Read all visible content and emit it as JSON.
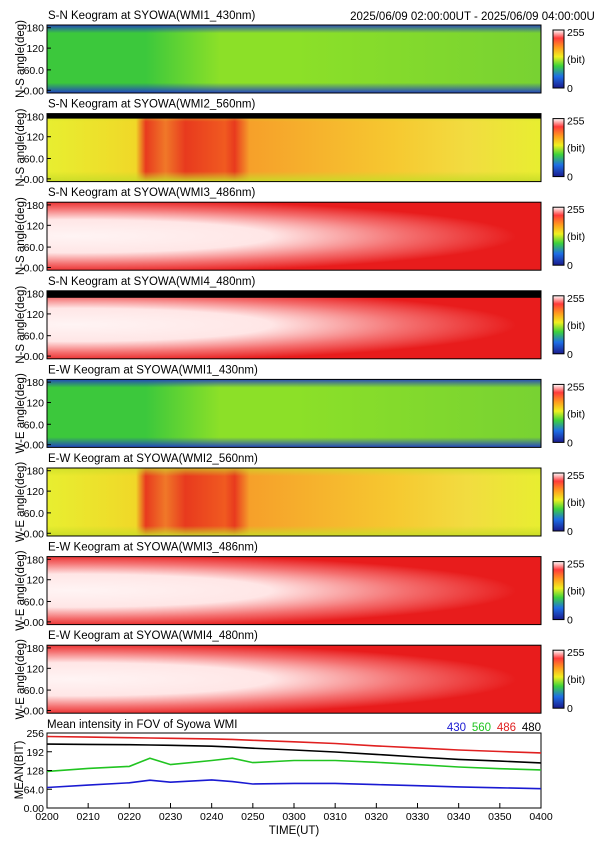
{
  "header": {
    "period": "2025/06/09 02:00:00UT - 2025/06/09 04:00:00UT"
  },
  "colorbar": {
    "max_label": "255",
    "min_label": "0",
    "unit_label": "(bit)"
  },
  "keograms": [
    {
      "title": "S-N Keogram at SYOWA(WMI1_430nm)",
      "ylabel": "N-S angle(deg)",
      "yticks": [
        "180",
        "120",
        "60.0",
        "0.00"
      ]
    },
    {
      "title": "S-N Keogram at SYOWA(WMI2_560nm)",
      "ylabel": "N-S angle(deg)",
      "yticks": [
        "180",
        "120",
        "60.0",
        "0.00"
      ]
    },
    {
      "title": "S-N Keogram at SYOWA(WMI3_486nm)",
      "ylabel": "N-S angle(deg)",
      "yticks": [
        "180",
        "120",
        "60.0",
        "0.00"
      ]
    },
    {
      "title": "S-N Keogram at SYOWA(WMI4_480nm)",
      "ylabel": "N-S angle(deg)",
      "yticks": [
        "180",
        "120",
        "60.0",
        "0.00"
      ]
    },
    {
      "title": "E-W Keogram at SYOWA(WMI1_430nm)",
      "ylabel": "W-E angle(deg)",
      "yticks": [
        "180",
        "120",
        "60.0",
        "0.00"
      ]
    },
    {
      "title": "E-W Keogram at SYOWA(WMI2_560nm)",
      "ylabel": "W-E angle(deg)",
      "yticks": [
        "180",
        "120",
        "60.0",
        "0.00"
      ]
    },
    {
      "title": "E-W Keogram at SYOWA(WMI3_486nm)",
      "ylabel": "W-E angle(deg)",
      "yticks": [
        "180",
        "120",
        "60.0",
        "0.00"
      ]
    },
    {
      "title": "E-W Keogram at SYOWA(WMI4_480nm)",
      "ylabel": "W-E angle(deg)",
      "yticks": [
        "180",
        "120",
        "60.0",
        "0.00"
      ]
    }
  ],
  "chart_data": [
    {
      "type": "heatmap",
      "title": "S-N Keogram at SYOWA(WMI1_430nm)",
      "ylabel": "N-S angle(deg)",
      "ylim": [
        0,
        180
      ],
      "colorbar": [
        0,
        255
      ],
      "colors": {
        "edge": "#1e3cc8",
        "early": "#3cc83c",
        "mid": "#8ce028",
        "late": "#78d232"
      }
    },
    {
      "type": "heatmap",
      "title": "S-N Keogram at SYOWA(WMI2_560nm)",
      "ylabel": "N-S angle(deg)",
      "ylim": [
        0,
        180
      ],
      "colorbar": [
        0,
        255
      ],
      "colors": {
        "edge": "#c8dc28",
        "early": "#e8ee30",
        "active": "#e83a1e",
        "late": "#f6c830"
      }
    },
    {
      "type": "heatmap",
      "title": "S-N Keogram at SYOWA(WMI3_486nm)",
      "ylabel": "N-S angle(deg)",
      "ylim": [
        0,
        180
      ],
      "colorbar": [
        0,
        255
      ],
      "colors": {
        "center": "#fff4f4",
        "edge": "#e81c1c"
      }
    },
    {
      "type": "heatmap",
      "title": "S-N Keogram at SYOWA(WMI4_480nm)",
      "ylabel": "N-S angle(deg)",
      "ylim": [
        0,
        180
      ],
      "colorbar": [
        0,
        255
      ],
      "colors": {
        "center": "#fff4f4",
        "edge": "#e81c1c"
      }
    },
    {
      "type": "heatmap",
      "title": "E-W Keogram at SYOWA(WMI1_430nm)",
      "ylabel": "W-E angle(deg)",
      "ylim": [
        0,
        180
      ],
      "colorbar": [
        0,
        255
      ],
      "colors": {
        "edge": "#1e3cc8",
        "early": "#3cc83c",
        "mid": "#8ce028",
        "late": "#78d232"
      }
    },
    {
      "type": "heatmap",
      "title": "E-W Keogram at SYOWA(WMI2_560nm)",
      "ylabel": "W-E angle(deg)",
      "ylim": [
        0,
        180
      ],
      "colorbar": [
        0,
        255
      ],
      "colors": {
        "edge": "#c8dc28",
        "early": "#e8ee30",
        "active": "#e83a1e",
        "late": "#f6c830"
      }
    },
    {
      "type": "heatmap",
      "title": "E-W Keogram at SYOWA(WMI3_486nm)",
      "ylabel": "W-E angle(deg)",
      "ylim": [
        0,
        180
      ],
      "colorbar": [
        0,
        255
      ],
      "colors": {
        "center": "#fff4f4",
        "edge": "#e81c1c"
      }
    },
    {
      "type": "heatmap",
      "title": "E-W Keogram at SYOWA(WMI4_480nm)",
      "ylabel": "W-E angle(deg)",
      "ylim": [
        0,
        180
      ],
      "colorbar": [
        0,
        255
      ],
      "colors": {
        "center": "#fff4f4",
        "edge": "#e81c1c"
      }
    },
    {
      "type": "line",
      "title": "Mean intensity in FOV of Syowa WMI",
      "xlabel": "TIME(UT)",
      "ylabel": "MEAN(BIT)",
      "x_ticks": [
        "0200",
        "0210",
        "0220",
        "0230",
        "0240",
        "0250",
        "0300",
        "0310",
        "0320",
        "0330",
        "0340",
        "0350",
        "0400"
      ],
      "y_ticks": [
        "256",
        "192",
        "128",
        "64.0",
        "0.00"
      ],
      "xlim": [
        "02:00",
        "04:00"
      ],
      "ylim": [
        0,
        256
      ],
      "x": [
        "02:00",
        "02:10",
        "02:20",
        "02:25",
        "02:30",
        "02:40",
        "02:45",
        "02:50",
        "03:00",
        "03:10",
        "03:20",
        "03:30",
        "03:40",
        "03:50",
        "04:00"
      ],
      "series": [
        {
          "name": "430",
          "color": "#1a1ad2",
          "values": [
            70,
            78,
            86,
            95,
            88,
            96,
            90,
            82,
            84,
            84,
            80,
            76,
            72,
            69,
            66
          ]
        },
        {
          "name": "560",
          "color": "#21c421",
          "values": [
            125,
            135,
            142,
            170,
            148,
            162,
            170,
            155,
            162,
            162,
            156,
            148,
            140,
            134,
            130
          ]
        },
        {
          "name": "486",
          "color": "#e02020",
          "values": [
            244,
            242,
            240,
            239,
            238,
            236,
            234,
            231,
            226,
            220,
            212,
            205,
            198,
            193,
            188
          ]
        },
        {
          "name": "480",
          "color": "#000000",
          "values": [
            218,
            217,
            216,
            215,
            214,
            211,
            208,
            204,
            198,
            191,
            183,
            174,
            166,
            160,
            154
          ]
        }
      ]
    }
  ]
}
